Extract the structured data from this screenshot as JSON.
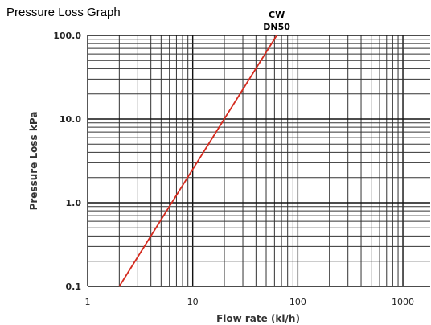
{
  "chart_data": {
    "type": "line",
    "title": "Pressure Loss Graph",
    "xlabel": "Flow rate (kl/h)",
    "ylabel": "Pressure Loss kPa",
    "xscale": "log",
    "yscale": "log",
    "xlim": [
      1,
      1000
    ],
    "ylim": [
      0.1,
      100
    ],
    "grid": true,
    "x_tick_labels": [
      "1",
      "10",
      "100",
      "1000"
    ],
    "y_tick_labels": [
      "100.0",
      "10.0",
      "1.0",
      "0.1"
    ],
    "series": [
      {
        "label_lines": [
          "CW",
          "DN50"
        ],
        "color": "#d42a1e",
        "x": [
          2.0,
          63
        ],
        "y": [
          0.1,
          100
        ]
      }
    ]
  }
}
